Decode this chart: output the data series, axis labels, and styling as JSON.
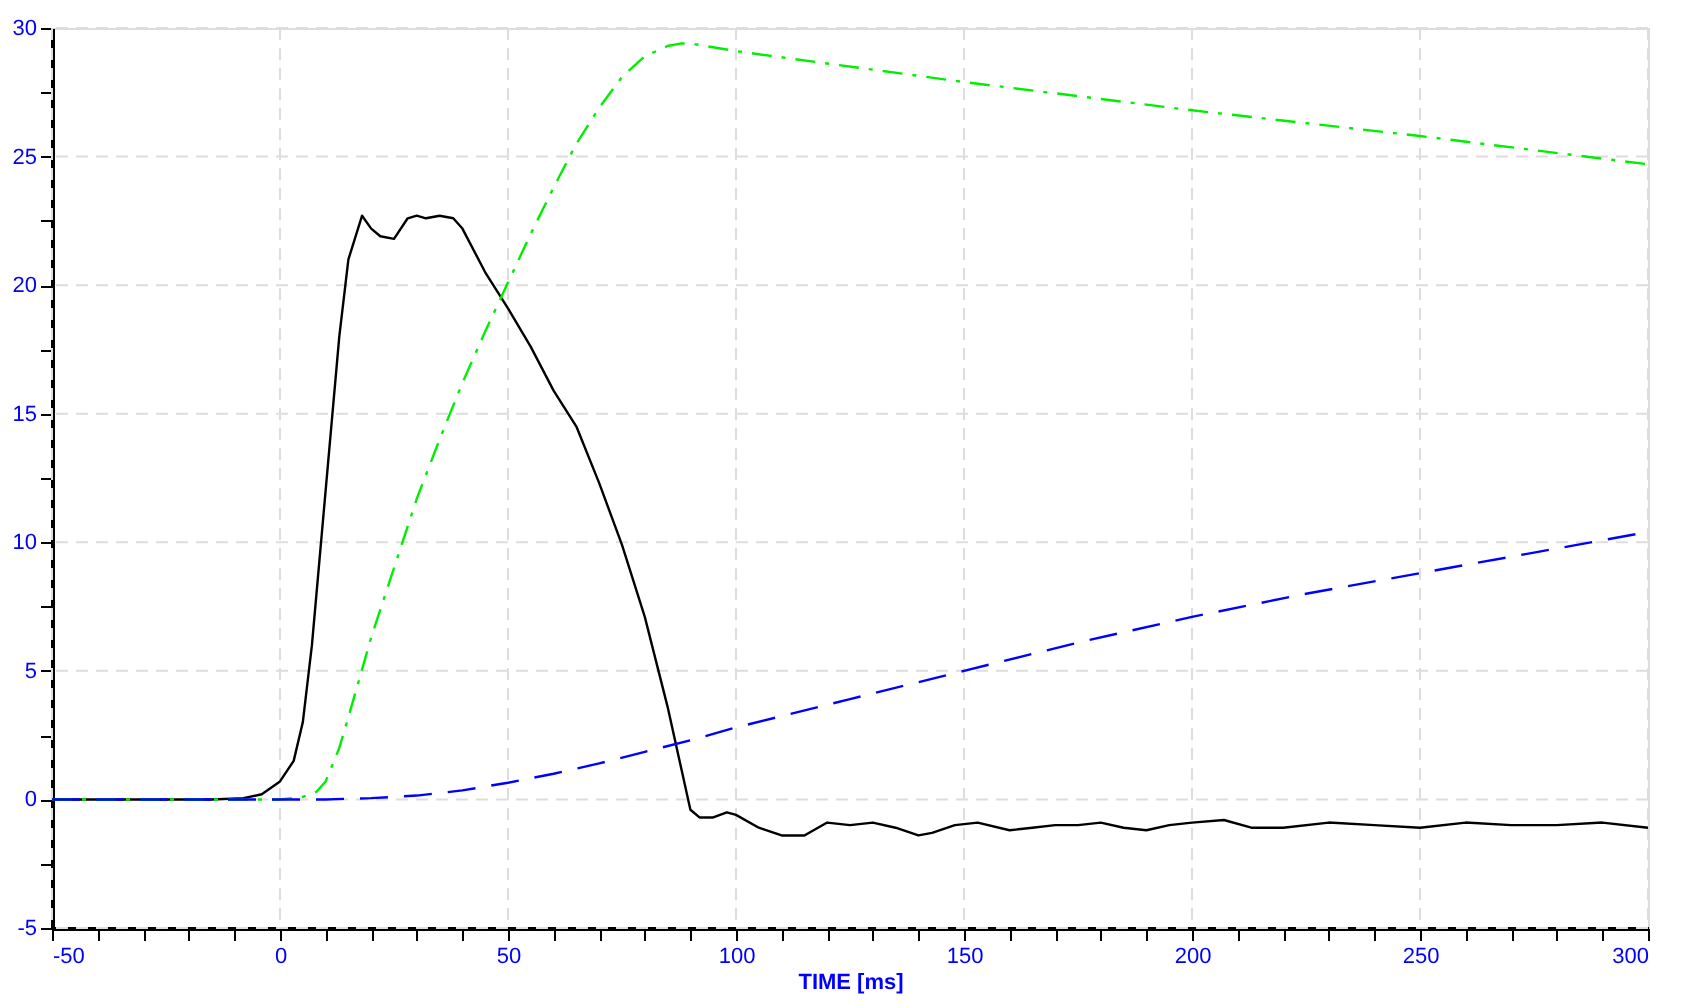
{
  "chart_data": {
    "type": "line",
    "xlabel": "TIME [ms]",
    "xlim": [
      -50,
      300
    ],
    "ylim": [
      -5,
      30
    ],
    "xticks": [
      -50,
      {
        "value": -40,
        "label": null
      },
      {
        "value": -30,
        "label": null
      },
      {
        "value": -20,
        "label": null
      },
      {
        "value": -10,
        "label": null
      },
      0,
      {
        "value": 10,
        "label": null
      },
      {
        "value": 20,
        "label": null
      },
      {
        "value": 30,
        "label": null
      },
      {
        "value": 40,
        "label": null
      },
      50,
      {
        "value": 60,
        "label": null
      },
      {
        "value": 70,
        "label": null
      },
      {
        "value": 80,
        "label": null
      },
      {
        "value": 90,
        "label": null
      },
      100,
      {
        "value": 110,
        "label": null
      },
      {
        "value": 120,
        "label": null
      },
      {
        "value": 130,
        "label": null
      },
      {
        "value": 140,
        "label": null
      },
      150,
      {
        "value": 160,
        "label": null
      },
      {
        "value": 170,
        "label": null
      },
      {
        "value": 180,
        "label": null
      },
      {
        "value": 190,
        "label": null
      },
      200,
      {
        "value": 210,
        "label": null
      },
      {
        "value": 220,
        "label": null
      },
      {
        "value": 230,
        "label": null
      },
      {
        "value": 240,
        "label": null
      },
      250,
      {
        "value": 260,
        "label": null
      },
      {
        "value": 270,
        "label": null
      },
      {
        "value": 280,
        "label": null
      },
      {
        "value": 290,
        "label": null
      },
      300
    ],
    "yticks": [
      -5,
      {
        "value": -2.5,
        "label": null
      },
      0,
      {
        "value": 2.5,
        "label": null
      },
      5,
      {
        "value": 7.5,
        "label": null
      },
      10,
      {
        "value": 12.5,
        "label": null
      },
      15,
      {
        "value": 17.5,
        "label": null
      },
      20,
      {
        "value": 22.5,
        "label": null
      },
      25,
      {
        "value": 27.5,
        "label": null
      },
      30
    ],
    "grid": true,
    "marker": "none",
    "series": [
      {
        "color": "#000000",
        "line_style": "solid",
        "x": [
          -50,
          -30,
          -15,
          -8,
          -4,
          0,
          3,
          5,
          7,
          10,
          13,
          15,
          18,
          20,
          22,
          25,
          28,
          30,
          32,
          35,
          38,
          40,
          45,
          50,
          55,
          60,
          65,
          70,
          75,
          80,
          85,
          88,
          90,
          92,
          95,
          98,
          100,
          105,
          110,
          115,
          120,
          125,
          130,
          135,
          140,
          143,
          148,
          153,
          160,
          165,
          170,
          175,
          180,
          185,
          190,
          195,
          200,
          207,
          213,
          220,
          230,
          240,
          250,
          260,
          270,
          280,
          290,
          300
        ],
        "values": [
          0,
          0,
          0,
          0.05,
          0.2,
          0.7,
          1.5,
          3,
          6,
          12,
          18,
          21,
          22.7,
          22.2,
          21.9,
          21.8,
          22.6,
          22.7,
          22.6,
          22.7,
          22.6,
          22.2,
          20.5,
          19.1,
          17.6,
          15.9,
          14.5,
          12.3,
          9.9,
          7.1,
          3.6,
          1.2,
          -0.4,
          -0.7,
          -0.7,
          -0.5,
          -0.6,
          -1.1,
          -1.4,
          -1.4,
          -0.9,
          -1.0,
          -0.9,
          -1.1,
          -1.4,
          -1.3,
          -1.0,
          -0.9,
          -1.2,
          -1.1,
          -1.0,
          -1.0,
          -0.9,
          -1.1,
          -1.2,
          -1.0,
          -0.9,
          -0.8,
          -1.1,
          -1.1,
          -0.9,
          -1.0,
          -1.1,
          -0.9,
          -1.0,
          -1.0,
          -0.9,
          -1.1
        ]
      },
      {
        "color": "#00ee00",
        "line_style": "dashdot",
        "x": [
          -50,
          0,
          5,
          8,
          10,
          13,
          15,
          20,
          25,
          30,
          35,
          40,
          45,
          50,
          55,
          60,
          65,
          70,
          75,
          80,
          85,
          88,
          90,
          100,
          150,
          200,
          250,
          300
        ],
        "values": [
          0,
          0,
          0.1,
          0.3,
          0.7,
          2,
          3.2,
          6.3,
          9,
          11.7,
          14,
          16.2,
          18.2,
          20.1,
          22,
          23.8,
          25.5,
          26.9,
          28.1,
          28.9,
          29.3,
          29.4,
          29.4,
          29.1,
          27.9,
          26.8,
          25.8,
          24.7
        ]
      },
      {
        "color": "#0000ff",
        "line_style": "dashed",
        "x": [
          -50,
          0,
          10,
          20,
          30,
          40,
          50,
          60,
          70,
          80,
          90,
          100,
          125,
          150,
          175,
          200,
          225,
          250,
          275,
          300
        ],
        "values": [
          0,
          0,
          0,
          0.05,
          0.15,
          0.35,
          0.65,
          1.0,
          1.4,
          1.85,
          2.3,
          2.8,
          3.9,
          5.0,
          6.1,
          7.1,
          8.0,
          8.8,
          9.6,
          10.4
        ]
      }
    ]
  }
}
